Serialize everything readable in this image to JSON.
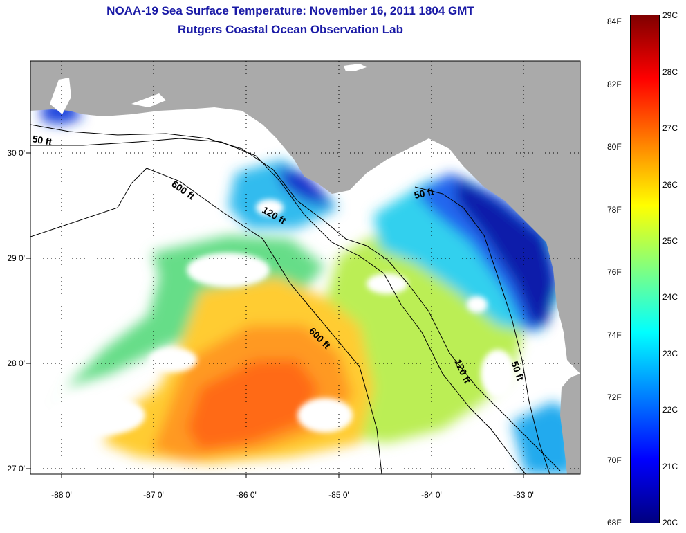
{
  "title": {
    "line1": "NOAA-19 Sea Surface Temperature:  November 16, 2011 1804 GMT",
    "line2": "Rutgers Coastal Ocean Observation Lab"
  },
  "map": {
    "lon_ticks": [
      "-88 0'",
      "-87 0'",
      "-86 0'",
      "-85 0'",
      "-84 0'",
      "-83 0'"
    ],
    "lat_ticks": [
      "30 0'",
      "29 0'",
      "28 0'",
      "27 0'"
    ],
    "contour_labels": [
      "50 ft",
      "600 ft",
      "120 ft",
      "50 ft",
      "600 ft",
      "120 ft",
      "50 ft"
    ],
    "colors": {
      "land": "#aaaaaa",
      "no_data": "#ffffff",
      "contour": "#000000"
    }
  },
  "colorbar": {
    "fahrenheit": [
      "84F",
      "82F",
      "80F",
      "78F",
      "76F",
      "74F",
      "72F",
      "70F",
      "68F"
    ],
    "celsius": [
      "29C",
      "28C",
      "27C",
      "26C",
      "25C",
      "24C",
      "23C",
      "22C",
      "21C",
      "20C"
    ],
    "colors": [
      "#800000",
      "#ff0000",
      "#ff8000",
      "#ffff00",
      "#80ff80",
      "#00ffff",
      "#0080ff",
      "#0000ff",
      "#000080"
    ]
  }
}
